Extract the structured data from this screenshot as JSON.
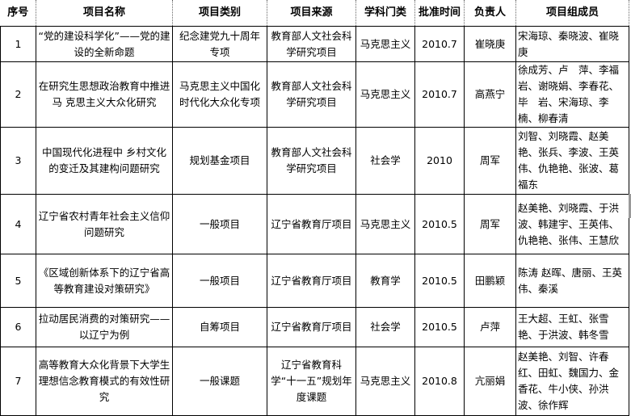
{
  "headers": [
    "序号",
    "项目名称",
    "项目类别",
    "项目来源",
    "学科门类",
    "批准时间",
    "负责人",
    "项目组成员"
  ],
  "rows": [
    {
      "no": "1",
      "name": "“党的建设科学化”——党的建设的全新命题",
      "category": "纪念建党九十周年专项",
      "source": "教育部人文社会科学研究项目",
      "discipline": "马克思主义",
      "date": "2010.7",
      "leader": "崔晓庚",
      "members": "宋海琼、秦晓波、崔晓庚"
    },
    {
      "no": "2",
      "name": "在研究生思想政治教育中推进马 克思主义大众化研究",
      "category": "马克思主义中国化时代化大众化专项",
      "source": "教育部人文社会科学研究项目",
      "discipline": "马克思主义",
      "date": "2010.7",
      "leader": "高燕宁",
      "members": "徐成芳、卢　萍、李福岩、谢晓娟、李春花、毕　岩、宋海琼、李楠、柳春清"
    },
    {
      "no": "3",
      "name": "中国现代化进程中 乡村文化的变迁及其建构问题研究",
      "category": "规划基金项目",
      "source": "教育部人文社会科学研究项目",
      "discipline": "社会学",
      "date": "2010",
      "leader": "周军",
      "members": "刘智、刘晓霞、赵美艳、张兵、李波、王英伟、仇艳艳、张波、葛福东"
    },
    {
      "no": "4",
      "name": "辽宁省农村青年社会主义信仰问题研究",
      "category": "一般项目",
      "source": "辽宁省教育厅项目",
      "discipline": "马克思主义",
      "date": "2010.5",
      "leader": "周军",
      "members": "赵美艳、刘晓霞、于洪波、韩建宇、王英伟、仇艳艳、张伟、王慧欣"
    },
    {
      "no": "5",
      "name": "《区域创新体系下的辽宁省高等教育建设对策研究》",
      "category": "一般项目",
      "source": "辽宁省教育厅项目",
      "discipline": "教育学",
      "date": "2010.5",
      "leader": "田鹏颖",
      "members": "陈涛 赵晖、唐丽、王英伟、秦溪"
    },
    {
      "no": "6",
      "name": "拉动居民消费的对策研究——以辽宁为例",
      "category": "自筹项目",
      "source": "辽宁省教育厅项目",
      "discipline": "社会学",
      "date": "2010.5",
      "leader": "卢萍",
      "members": "王大超、王虹、张雪艳、于洪波、韩冬雪"
    },
    {
      "no": "7",
      "name": "高等教育大众化背景下大学生理想信念教育模式的有效性研究",
      "category": "一般课题",
      "source": "辽宁省教育科学“十一五”规划年度课题",
      "discipline": "马克思主义",
      "date": "2010.8",
      "leader": "亢丽娟",
      "members": "赵美艳、刘智、许春红、田虹、魏国力、金香花、牛小侠、孙洪波、徐作辉"
    }
  ]
}
